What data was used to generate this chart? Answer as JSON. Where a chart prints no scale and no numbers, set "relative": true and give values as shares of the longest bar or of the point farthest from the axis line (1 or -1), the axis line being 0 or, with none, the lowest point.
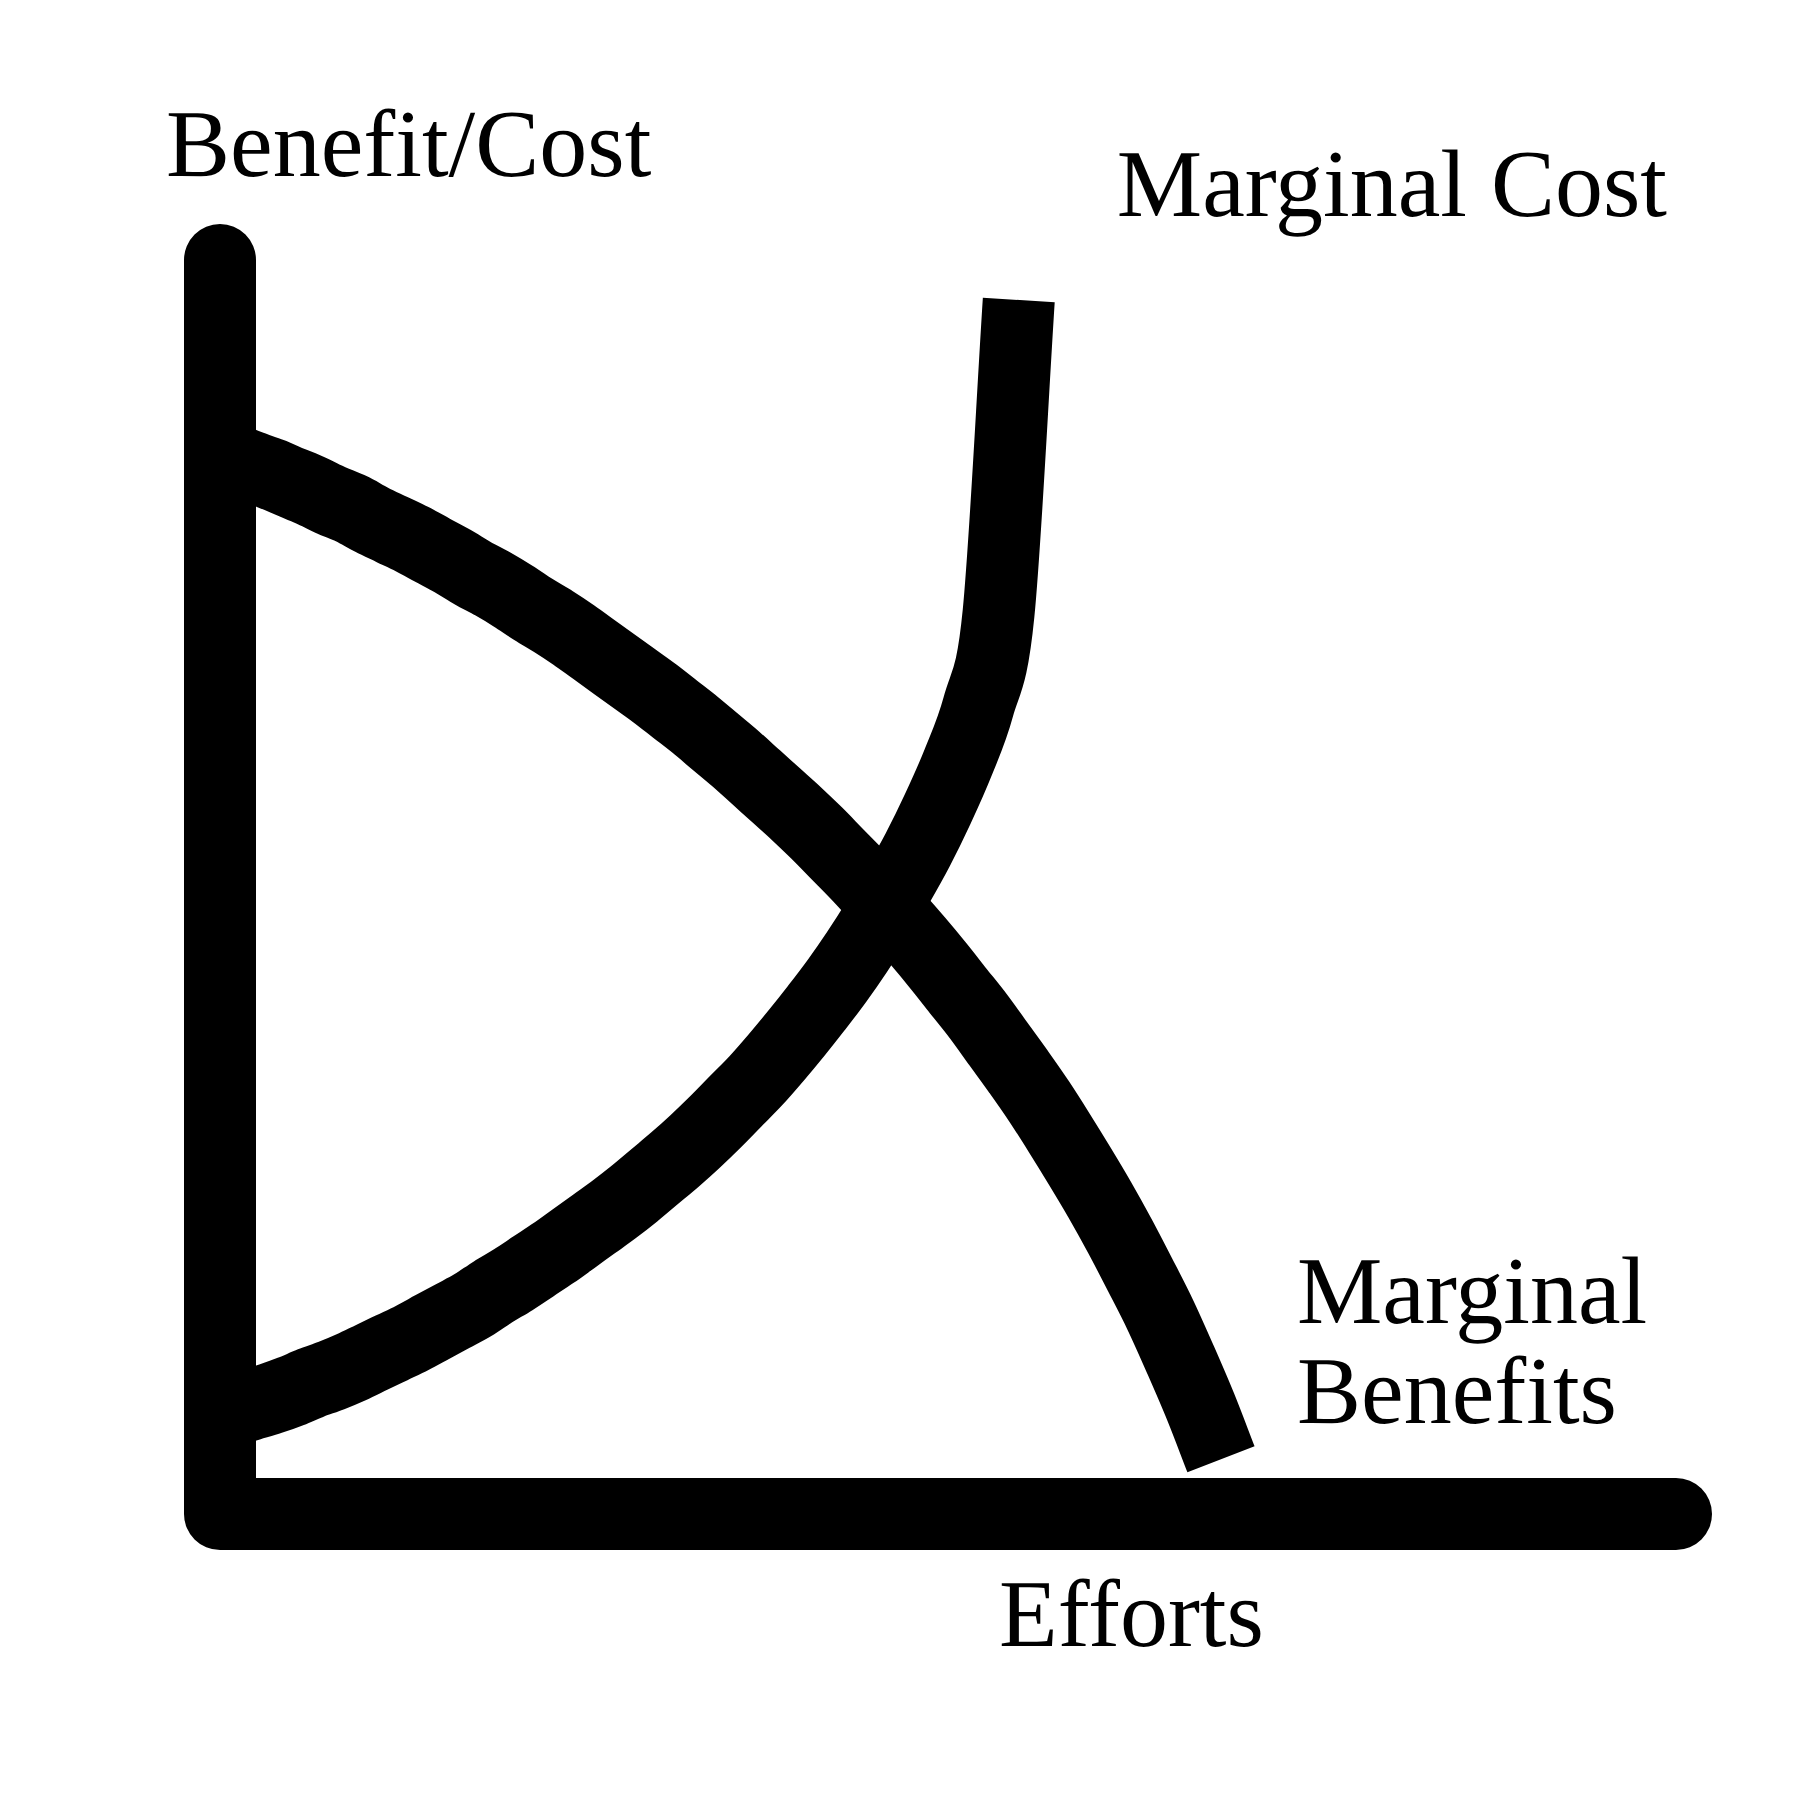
{
  "chart_data": {
    "type": "line",
    "relative": true,
    "xlabel": "Efforts",
    "ylabel": "Benefit/Cost",
    "categories": [
      null,
      null,
      null,
      null,
      null,
      null,
      null,
      null,
      null,
      null,
      null,
      null,
      null,
      null,
      null,
      null,
      null,
      null,
      null,
      null,
      null,
      null,
      null,
      null,
      null,
      null,
      null,
      null,
      null,
      null,
      null,
      null,
      null,
      null,
      null,
      null,
      null,
      null,
      null,
      null,
      null,
      null,
      null,
      null,
      null,
      null,
      null,
      null,
      null,
      null,
      null,
      null,
      null,
      null,
      null,
      null,
      null,
      null,
      null,
      null,
      null,
      null,
      null,
      null,
      null,
      null,
      null,
      null,
      null,
      null,
      null,
      null
    ],
    "series": [
      {
        "name": "Marginal Cost",
        "color": "#000000",
        "values": [
          0.085,
          0.09,
          0.095,
          0.101,
          0.108,
          0.114,
          0.121,
          0.129,
          0.137,
          0.145,
          0.154,
          0.163,
          0.172,
          0.183,
          0.193,
          0.204,
          0.215,
          0.227,
          0.239,
          0.251,
          0.264,
          0.278,
          0.292,
          0.307,
          0.323,
          0.34,
          0.357,
          0.376,
          0.396,
          0.417,
          0.439,
          0.463,
          0.489,
          0.517,
          0.547,
          0.581,
          0.619,
          0.665,
          0.742,
          1,
          null,
          null,
          null,
          null,
          null,
          null,
          null,
          null,
          null,
          null,
          null,
          null,
          null,
          null,
          null,
          null,
          null,
          null,
          null,
          null,
          null,
          null,
          null,
          null,
          null,
          null,
          null,
          null,
          null,
          null,
          null,
          null
        ]
      },
      {
        "name": "Marginal Benefits",
        "color": "#000000",
        "values": [
          0.87,
          0.863,
          0.857,
          0.85,
          0.843,
          0.835,
          0.828,
          0.819,
          0.811,
          0.803,
          0.794,
          0.785,
          0.775,
          0.766,
          0.756,
          0.745,
          0.735,
          0.724,
          0.712,
          0.7,
          0.688,
          0.676,
          0.663,
          0.65,
          0.636,
          0.622,
          0.607,
          0.592,
          0.577,
          0.561,
          0.544,
          0.527,
          0.509,
          0.491,
          0.472,
          0.452,
          0.431,
          0.41,
          0.387,
          0.364,
          0.34,
          0.314,
          0.287,
          0.259,
          0.229,
          0.197,
          0.164,
          0.127,
          0.088,
          0.045,
          null,
          null,
          null,
          null,
          null,
          null,
          null,
          null,
          null,
          null,
          null,
          null,
          null,
          null,
          null,
          null,
          null,
          null,
          null,
          null,
          null,
          null
        ]
      }
    ]
  }
}
